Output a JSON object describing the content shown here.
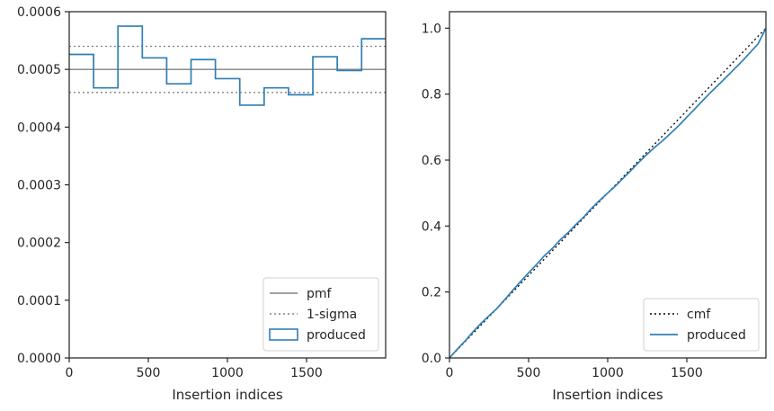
{
  "chart_data": [
    {
      "type": "line",
      "xlabel": "Insertion indices",
      "ylabel": "",
      "xlim": [
        0,
        2000
      ],
      "ylim": [
        0,
        0.0006
      ],
      "xticks": [
        0,
        500,
        1000,
        1500
      ],
      "xtick_labels": [
        "0",
        "500",
        "1000",
        "1500"
      ],
      "yticks": [
        0,
        0.0001,
        0.0002,
        0.0003,
        0.0004,
        0.0005,
        0.0006
      ],
      "ytick_labels": [
        "0.0000",
        "0.0001",
        "0.0002",
        "0.0003",
        "0.0004",
        "0.0005",
        "0.0006"
      ],
      "grid": false,
      "legend_position": "lower-right",
      "series": [
        {
          "name": "pmf",
          "style": "solid",
          "color": "#808080",
          "x": [
            0,
            2000
          ],
          "y": [
            0.0005,
            0.0005
          ]
        },
        {
          "name": "1-sigma",
          "style": "dotted",
          "color": "#808080",
          "x": [
            0,
            2000
          ],
          "y": [
            0.00054,
            0.00054
          ],
          "extra_y": [
            0.00046,
            0.00046
          ]
        },
        {
          "name": "produced",
          "style": "step",
          "color": "#2f7fb5",
          "bin_edges": [
            0,
            154,
            308,
            462,
            616,
            770,
            924,
            1078,
            1232,
            1386,
            1540,
            1694,
            1848,
            2000
          ],
          "values": [
            0.000526,
            0.000468,
            0.000575,
            0.00052,
            0.000475,
            0.000517,
            0.000484,
            0.000438,
            0.000468,
            0.000456,
            0.000522,
            0.000498,
            0.000553
          ]
        }
      ]
    },
    {
      "type": "line",
      "xlabel": "Insertion indices",
      "ylabel": "",
      "xlim": [
        0,
        2000
      ],
      "ylim": [
        0,
        1.05
      ],
      "xticks": [
        0,
        500,
        1000,
        1500
      ],
      "xtick_labels": [
        "0",
        "500",
        "1000",
        "1500"
      ],
      "yticks": [
        0,
        0.2,
        0.4,
        0.6,
        0.8,
        1.0
      ],
      "ytick_labels": [
        "0.0",
        "0.2",
        "0.4",
        "0.6",
        "0.8",
        "1.0"
      ],
      "grid": false,
      "legend_position": "lower-right",
      "series": [
        {
          "name": "cmf",
          "style": "dotted",
          "color": "#000000",
          "x": [
            0,
            2000
          ],
          "y": [
            0,
            1
          ]
        },
        {
          "name": "produced",
          "style": "solid",
          "color": "#2f7fb5",
          "x": [
            0,
            50,
            100,
            150,
            200,
            250,
            300,
            350,
            400,
            450,
            500,
            550,
            600,
            650,
            700,
            750,
            800,
            850,
            900,
            950,
            1000,
            1050,
            1100,
            1150,
            1200,
            1250,
            1300,
            1350,
            1400,
            1450,
            1500,
            1550,
            1600,
            1650,
            1700,
            1750,
            1800,
            1850,
            1900,
            1950,
            2000
          ],
          "y": [
            0,
            0.027,
            0.052,
            0.08,
            0.105,
            0.128,
            0.15,
            0.177,
            0.205,
            0.232,
            0.258,
            0.283,
            0.31,
            0.332,
            0.358,
            0.38,
            0.405,
            0.428,
            0.455,
            0.478,
            0.5,
            0.522,
            0.546,
            0.57,
            0.595,
            0.618,
            0.64,
            0.66,
            0.682,
            0.705,
            0.73,
            0.755,
            0.78,
            0.805,
            0.828,
            0.852,
            0.876,
            0.9,
            0.926,
            0.952,
            1.0
          ]
        }
      ]
    }
  ]
}
